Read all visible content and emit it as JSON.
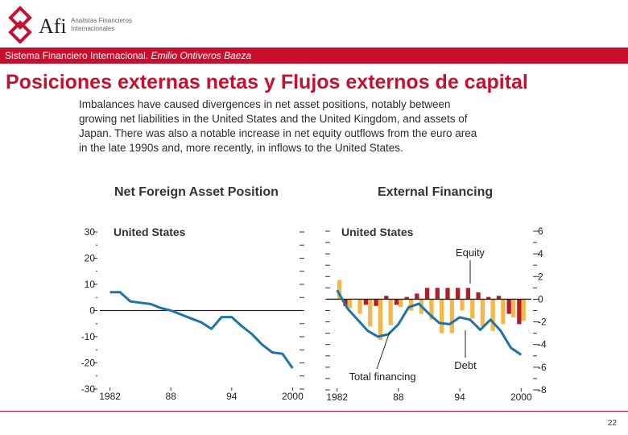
{
  "header": {
    "logo_main": "Afi",
    "logo_line1": "Analistas Financieros",
    "logo_line2": "Internacionales",
    "course_prefix": "Sistema Financiero Internacional. ",
    "course_author": "Emilio Ontiveros Baeza",
    "slide_title": "Posiciones externas netas y Flujos externos de capital"
  },
  "description_lines": [
    "Imbalances have caused divergences in net asset positions, notably between",
    "growing net liabilities in the United States and the United Kingdom, and assets of",
    "Japan. There was also a notable increase in net equity outflows from the euro area",
    "in the late 1990s and, more recently, in inflows to the United States."
  ],
  "page_number": "22",
  "colors": {
    "accent": "#c8102e",
    "line": "#1e73a8",
    "equity": "#b01e28",
    "debt": "#f5b64c"
  },
  "chart_data": [
    {
      "type": "line",
      "title": "Net Foreign Asset Position",
      "subtitle": "United States",
      "x_ticks": [
        "1982",
        "88",
        "94",
        "2000"
      ],
      "y_ticks": [
        30,
        20,
        10,
        0,
        -10,
        -20,
        -30
      ],
      "ylim": [
        -30,
        30
      ],
      "xlim": [
        1981,
        2001
      ],
      "series": [
        {
          "x": [
            1982,
            1983,
            1984,
            1985,
            1986,
            1987,
            1988,
            1989,
            1990,
            1991,
            1992,
            1993,
            1994,
            1995,
            1996,
            1997,
            1998,
            1999,
            2000
          ],
          "values": [
            7,
            7,
            3.5,
            3,
            2.5,
            1,
            0,
            -1.5,
            -3,
            -4.5,
            -7,
            -2.5,
            -2.5,
            -6,
            -9,
            -13,
            -16,
            -16.5,
            -22
          ]
        }
      ]
    },
    {
      "type": "bar",
      "title": "External Financing",
      "subtitle": "United States",
      "x_ticks": [
        "1982",
        "88",
        "94",
        "2000"
      ],
      "y_ticks": [
        6,
        4,
        2,
        0,
        -2,
        -4,
        -6,
        -8
      ],
      "ylim": [
        -8,
        6
      ],
      "xlim": [
        1981,
        2001
      ],
      "annotations": [
        "Equity",
        "Debt",
        "Total financing"
      ],
      "x": [
        1982,
        1983,
        1984,
        1985,
        1986,
        1987,
        1988,
        1989,
        1990,
        1991,
        1992,
        1993,
        1994,
        1995,
        1996,
        1997,
        1998,
        1999,
        2000
      ],
      "series": [
        {
          "name": "Equity",
          "values": [
            0,
            -0.6,
            0,
            -0.5,
            -0.6,
            0.3,
            -0.5,
            0.2,
            0.5,
            1,
            1,
            1,
            1,
            1,
            0.6,
            0.2,
            0.3,
            -1.3,
            -2.2
          ]
        },
        {
          "name": "Debt",
          "values": [
            1.7,
            -0.8,
            -1.3,
            -2.4,
            -3.6,
            -2.3,
            -0.7,
            -1,
            -1.3,
            -1.8,
            -3,
            -3,
            -1,
            -1.7,
            -2.4,
            -2.8,
            -2.2,
            -1.6,
            -1.9
          ]
        },
        {
          "name": "Total financing",
          "values": [
            0.8,
            -0.8,
            -1.8,
            -2.8,
            -3.3,
            -3.1,
            -2.2,
            -0.7,
            -0.4,
            -1.3,
            -2.1,
            -2.2,
            -1.6,
            -1.8,
            -2.7,
            -1.8,
            -2.8,
            -4.3,
            -4.9
          ]
        }
      ]
    }
  ]
}
